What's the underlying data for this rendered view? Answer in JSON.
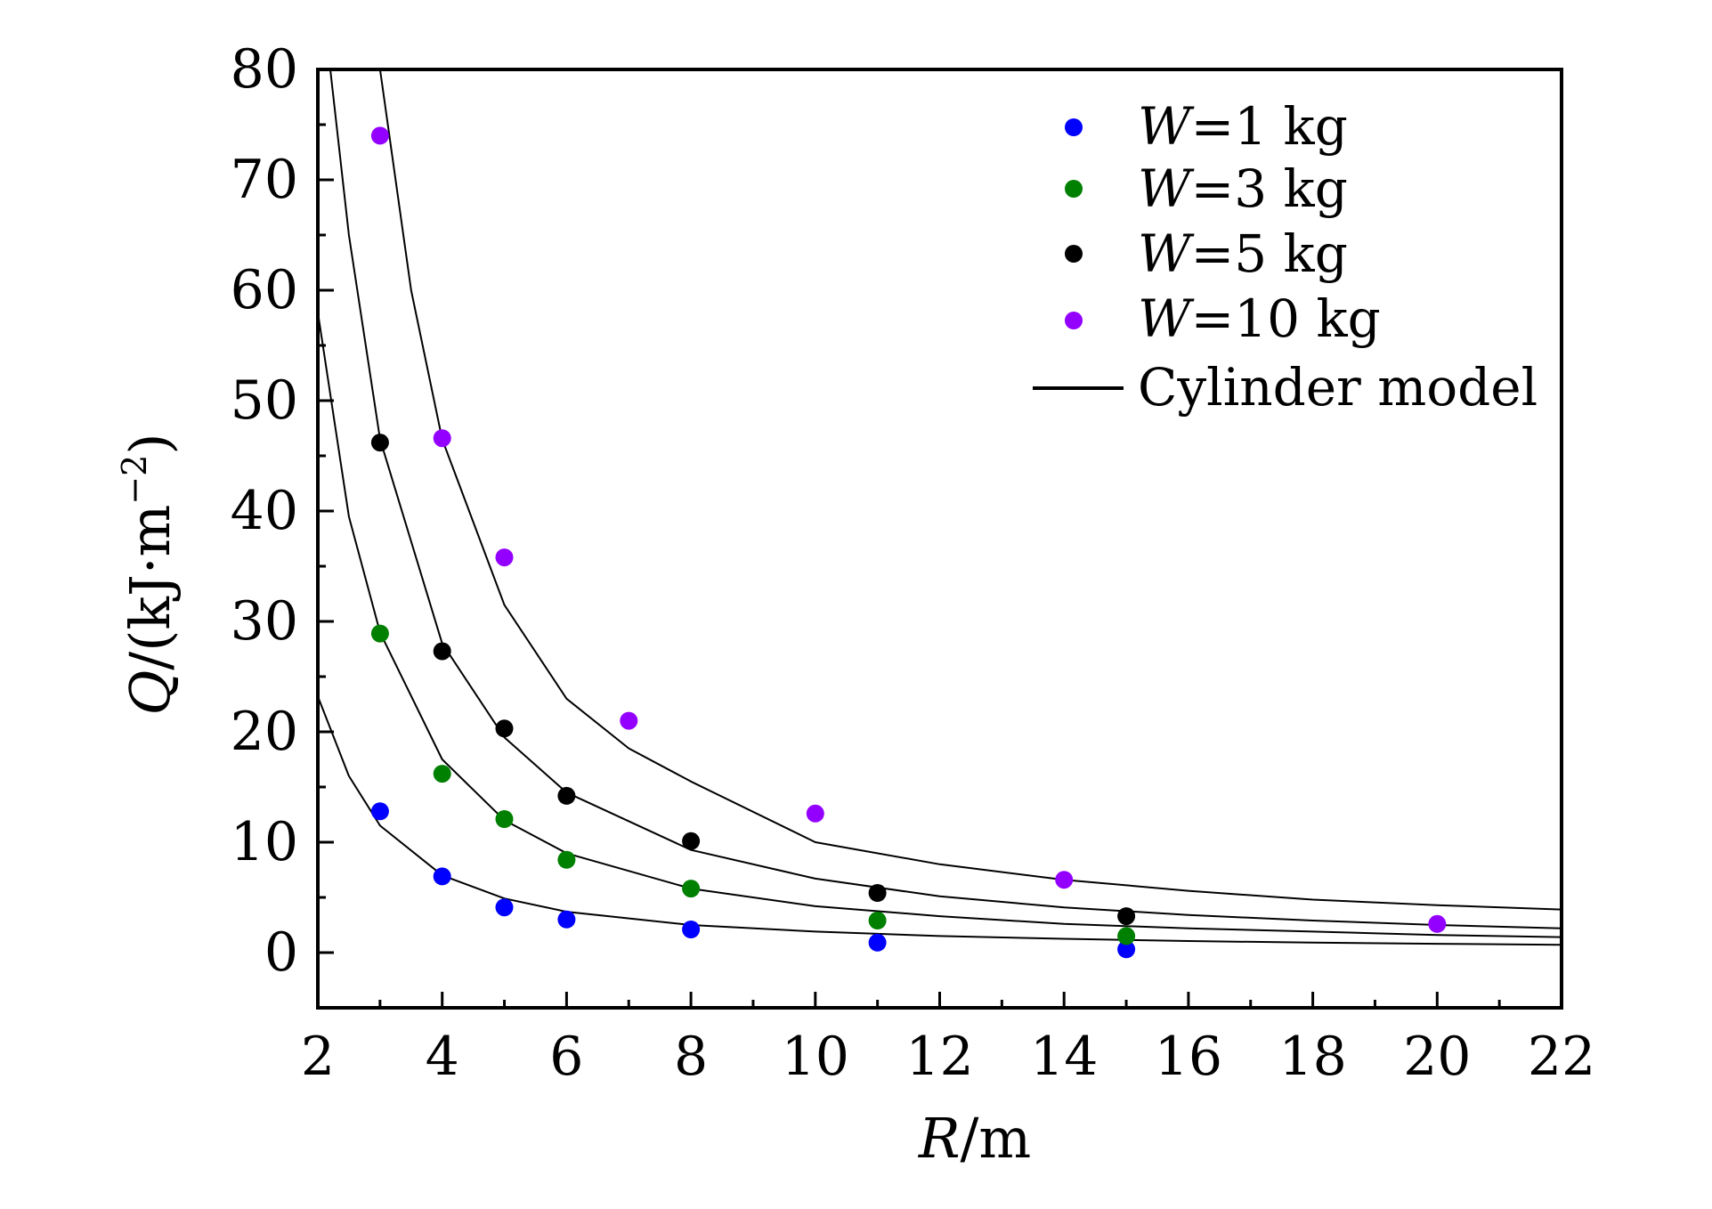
{
  "chart_data": {
    "type": "scatter",
    "title": "",
    "xlabel": {
      "symbol": "R",
      "unit": "/m"
    },
    "ylabel": {
      "symbol": "Q",
      "unit": "/(kJ·m",
      "exponent": "−2",
      "close": ")"
    },
    "xlim": [
      2,
      22
    ],
    "ylim": [
      -5,
      80
    ],
    "xticks": [
      2,
      4,
      6,
      8,
      10,
      12,
      14,
      16,
      18,
      20,
      22
    ],
    "yticks": [
      0,
      10,
      20,
      30,
      40,
      50,
      60,
      70,
      80
    ],
    "grid": false,
    "legend_position": "top-right",
    "series": [
      {
        "name": "W=1 kg",
        "legend_symbol": "W",
        "legend_rest": "=1 kg",
        "color": "#0000ff",
        "x": [
          3,
          4,
          5,
          6,
          8,
          11,
          15
        ],
        "y": [
          12.8,
          6.9,
          4.1,
          3.0,
          2.1,
          0.9,
          0.3
        ]
      },
      {
        "name": "W=3 kg",
        "legend_symbol": "W",
        "legend_rest": "=3 kg",
        "color": "#008000",
        "x": [
          3,
          4,
          5,
          6,
          8,
          11,
          15
        ],
        "y": [
          28.9,
          16.2,
          12.1,
          8.4,
          5.8,
          2.9,
          1.5
        ]
      },
      {
        "name": "W=5 kg",
        "legend_symbol": "W",
        "legend_rest": "=5 kg",
        "color": "#000000",
        "x": [
          3,
          4,
          5,
          6,
          8,
          11,
          15
        ],
        "y": [
          46.2,
          27.3,
          20.3,
          14.2,
          10.1,
          5.4,
          3.3
        ]
      },
      {
        "name": "W=10 kg",
        "legend_symbol": "W",
        "legend_rest": "=10 kg",
        "color": "#9400ff",
        "x": [
          3,
          4,
          5,
          7,
          10,
          14,
          20
        ],
        "y": [
          74.0,
          46.6,
          35.8,
          21.0,
          12.6,
          6.6,
          2.6
        ]
      }
    ],
    "model_curves": {
      "name": "Cylinder model",
      "color": "#000000",
      "curves": [
        {
          "x": [
            2.0,
            2.5,
            3.0,
            4.0,
            5.0,
            6.0,
            8.0,
            10.0,
            12.0,
            14.0,
            16.0,
            18.0,
            20.0,
            22.0
          ],
          "y": [
            23.2,
            16.0,
            11.5,
            7.0,
            4.9,
            3.7,
            2.5,
            1.9,
            1.5,
            1.25,
            1.05,
            0.9,
            0.8,
            0.7
          ]
        },
        {
          "x": [
            2.0,
            2.5,
            3.0,
            4.0,
            5.0,
            6.0,
            8.0,
            10.0,
            12.0,
            14.0,
            16.0,
            18.0,
            20.0,
            22.0
          ],
          "y": [
            58.0,
            39.5,
            29.0,
            17.5,
            12.0,
            9.0,
            5.8,
            4.2,
            3.3,
            2.6,
            2.2,
            1.9,
            1.6,
            1.4
          ]
        },
        {
          "x": [
            2.2,
            2.5,
            3.0,
            4.0,
            5.0,
            6.0,
            8.0,
            10.0,
            12.0,
            14.0,
            16.0,
            18.0,
            20.0,
            22.0
          ],
          "y": [
            80.0,
            65.0,
            46.5,
            28.0,
            19.5,
            14.5,
            9.3,
            6.7,
            5.1,
            4.1,
            3.4,
            2.9,
            2.5,
            2.2
          ]
        },
        {
          "x": [
            3.0,
            3.5,
            4.0,
            5.0,
            6.0,
            7.0,
            8.0,
            10.0,
            12.0,
            14.0,
            16.0,
            18.0,
            20.0,
            22.0
          ],
          "y": [
            80.0,
            60.0,
            46.5,
            31.5,
            23.0,
            18.5,
            15.5,
            10.0,
            8.0,
            6.6,
            5.6,
            4.8,
            4.3,
            3.9
          ]
        }
      ]
    }
  }
}
